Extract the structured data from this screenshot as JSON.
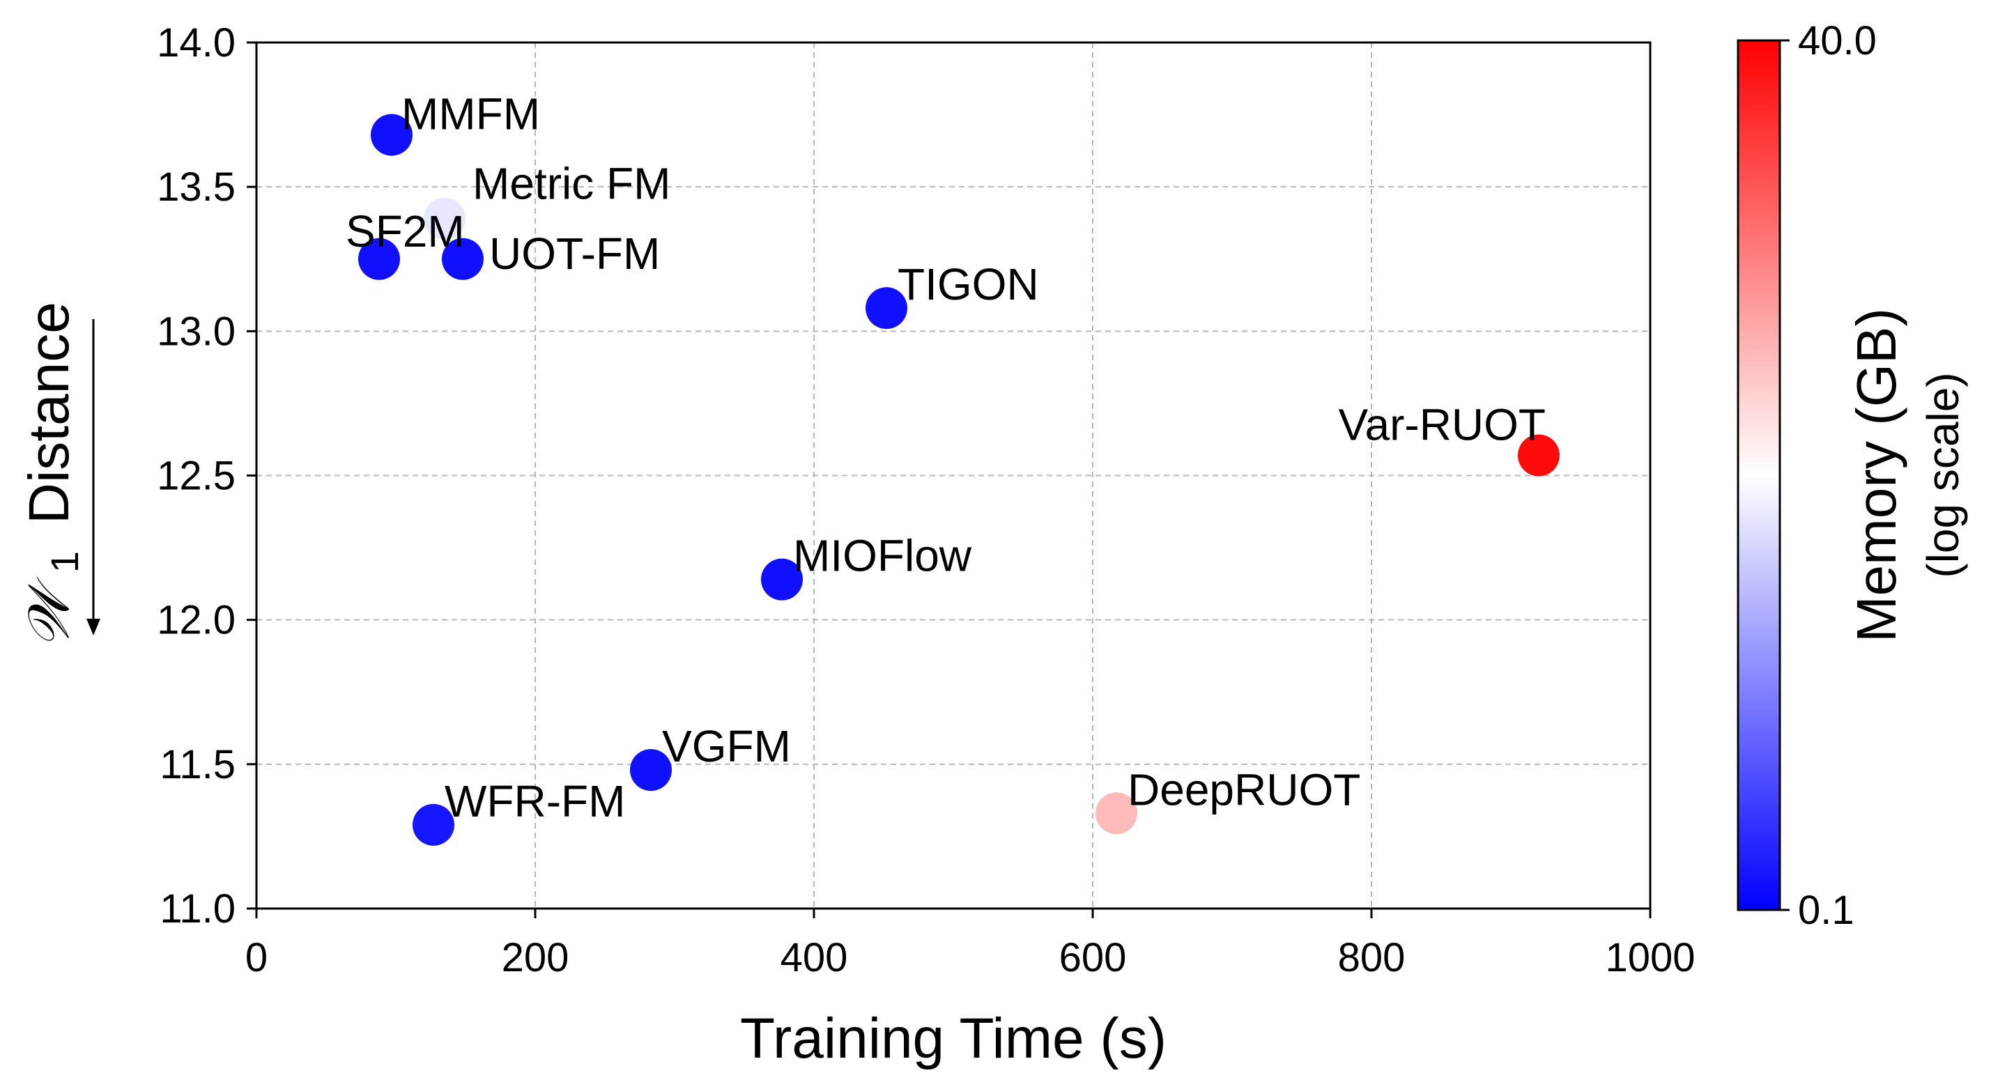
{
  "chart_data": {
    "type": "scatter",
    "xlabel": "Training Time (s)",
    "ylabel": "Distance",
    "ylabel_symbol": "𝒲",
    "ylabel_subscript": "1",
    "ylabel_arrow": "↓",
    "xlim": [
      0,
      1000
    ],
    "ylim": [
      11.0,
      14.0
    ],
    "xticks": [
      "0",
      "200",
      "400",
      "600",
      "800",
      "1000"
    ],
    "yticks": [
      "11.0",
      "11.5",
      "12.0",
      "12.5",
      "13.0",
      "13.5",
      "14.0"
    ],
    "grid": true,
    "colorbar": {
      "label_line1": "Memory (GB)",
      "label_line2": "(log scale)",
      "min": 0.1,
      "max": 40.0,
      "tick_labels": [
        "0.1",
        "40.0"
      ],
      "scale": "log",
      "colormap": [
        "#0000ff",
        "#ffffff",
        "#ff0000"
      ]
    },
    "points": [
      {
        "name": "MMFM",
        "x": 97,
        "y": 13.68,
        "memory": 0.12
      },
      {
        "name": "Metric FM",
        "x": 135,
        "y": 13.39,
        "memory": 1.5
      },
      {
        "name": "SF2M",
        "x": 88,
        "y": 13.25,
        "memory": 0.12
      },
      {
        "name": "UOT-FM",
        "x": 148,
        "y": 13.25,
        "memory": 0.12
      },
      {
        "name": "TIGON",
        "x": 452,
        "y": 13.08,
        "memory": 0.12
      },
      {
        "name": "Var-RUOT",
        "x": 920,
        "y": 12.57,
        "memory": 35.0
      },
      {
        "name": "MIOFlow",
        "x": 377,
        "y": 12.14,
        "memory": 0.12
      },
      {
        "name": "VGFM",
        "x": 283,
        "y": 11.48,
        "memory": 0.12
      },
      {
        "name": "WFR-FM",
        "x": 127,
        "y": 11.29,
        "memory": 0.13
      },
      {
        "name": "DeepRUOT",
        "x": 617,
        "y": 11.33,
        "memory": 4.5
      }
    ]
  }
}
